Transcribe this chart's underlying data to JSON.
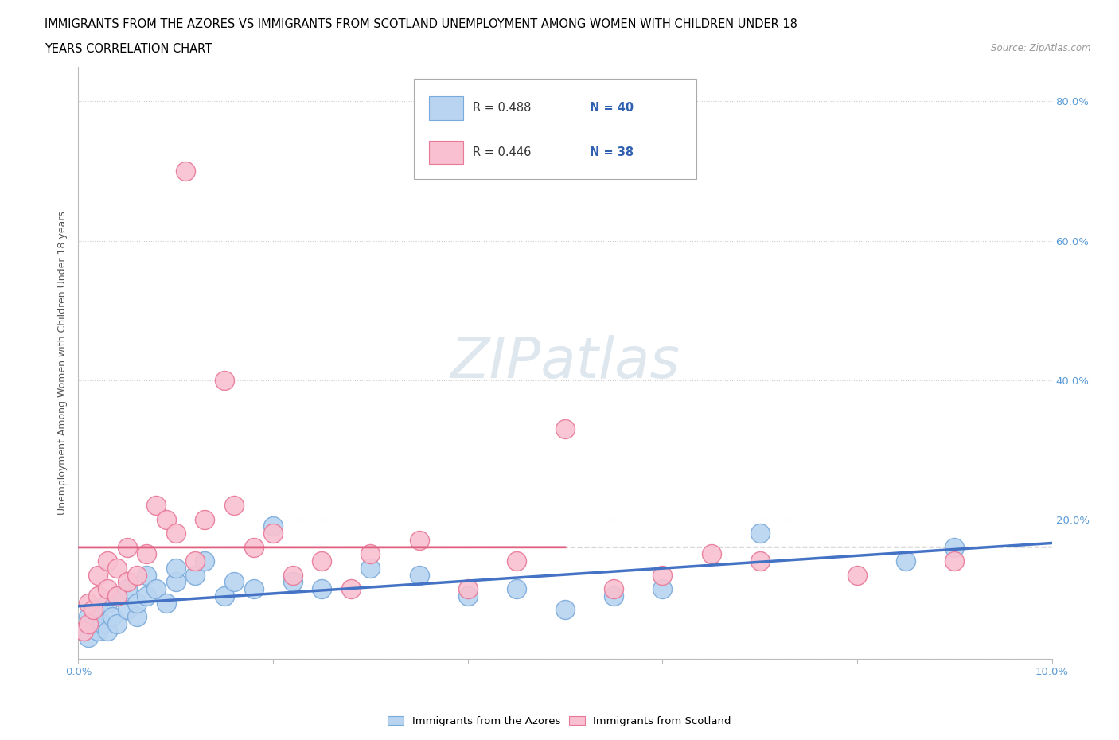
{
  "title_line1": "IMMIGRANTS FROM THE AZORES VS IMMIGRANTS FROM SCOTLAND UNEMPLOYMENT AMONG WOMEN WITH CHILDREN UNDER 18",
  "title_line2": "YEARS CORRELATION CHART",
  "source": "Source: ZipAtlas.com",
  "ylabel": "Unemployment Among Women with Children Under 18 years",
  "xlim": [
    0.0,
    0.1
  ],
  "ylim": [
    0.0,
    0.85
  ],
  "x_ticks": [
    0.0,
    0.02,
    0.04,
    0.06,
    0.08,
    0.1
  ],
  "x_tick_labels": [
    "0.0%",
    "",
    "",
    "",
    "",
    "10.0%"
  ],
  "y_ticks": [
    0.0,
    0.2,
    0.4,
    0.6,
    0.8
  ],
  "y_tick_labels": [
    "",
    "20.0%",
    "40.0%",
    "60.0%",
    "80.0%"
  ],
  "azores_color": "#b8d4f0",
  "azores_edge_color": "#7aaadc",
  "scotland_color": "#f8c0d0",
  "scotland_edge_color": "#e87898",
  "trendline_azores_color": "#4472c4",
  "trendline_scotland_color": "#e06080",
  "trendline_dashed_color": "#bbbbbb",
  "watermark_color": "#d0dce8",
  "legend_R_azores": "0.488",
  "legend_N_azores": "40",
  "legend_R_scotland": "0.446",
  "legend_N_scotland": "38",
  "azores_x": [
    0.0005,
    0.001,
    0.001,
    0.0015,
    0.002,
    0.002,
    0.0025,
    0.003,
    0.003,
    0.0035,
    0.004,
    0.004,
    0.005,
    0.005,
    0.006,
    0.006,
    0.007,
    0.007,
    0.008,
    0.009,
    0.01,
    0.01,
    0.012,
    0.013,
    0.015,
    0.016,
    0.018,
    0.02,
    0.022,
    0.025,
    0.03,
    0.035,
    0.04,
    0.045,
    0.05,
    0.055,
    0.06,
    0.07,
    0.085,
    0.09
  ],
  "azores_y": [
    0.04,
    0.03,
    0.06,
    0.05,
    0.04,
    0.07,
    0.05,
    0.04,
    0.08,
    0.06,
    0.05,
    0.09,
    0.07,
    0.1,
    0.06,
    0.08,
    0.09,
    0.12,
    0.1,
    0.08,
    0.11,
    0.13,
    0.12,
    0.14,
    0.09,
    0.11,
    0.1,
    0.19,
    0.11,
    0.1,
    0.13,
    0.12,
    0.09,
    0.1,
    0.07,
    0.09,
    0.1,
    0.18,
    0.14,
    0.16
  ],
  "scotland_x": [
    0.0005,
    0.001,
    0.001,
    0.0015,
    0.002,
    0.002,
    0.003,
    0.003,
    0.004,
    0.004,
    0.005,
    0.005,
    0.006,
    0.007,
    0.008,
    0.009,
    0.01,
    0.011,
    0.012,
    0.013,
    0.015,
    0.016,
    0.018,
    0.02,
    0.022,
    0.025,
    0.028,
    0.03,
    0.035,
    0.04,
    0.045,
    0.05,
    0.055,
    0.06,
    0.065,
    0.07,
    0.08,
    0.09
  ],
  "scotland_y": [
    0.04,
    0.05,
    0.08,
    0.07,
    0.09,
    0.12,
    0.1,
    0.14,
    0.09,
    0.13,
    0.11,
    0.16,
    0.12,
    0.15,
    0.22,
    0.2,
    0.18,
    0.7,
    0.14,
    0.2,
    0.4,
    0.22,
    0.16,
    0.18,
    0.12,
    0.14,
    0.1,
    0.15,
    0.17,
    0.1,
    0.14,
    0.33,
    0.1,
    0.12,
    0.15,
    0.14,
    0.12,
    0.14
  ],
  "background_color": "#ffffff",
  "grid_color": "#cccccc"
}
